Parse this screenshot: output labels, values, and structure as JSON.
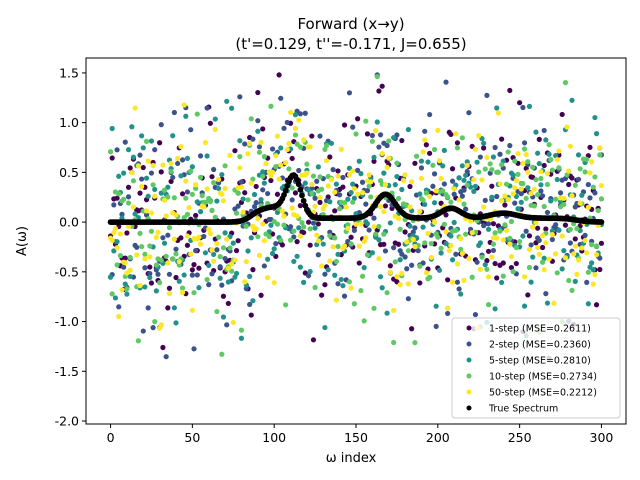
{
  "chart_data": {
    "type": "scatter",
    "title": "Forward (x→y)",
    "subtitle": "(t'=0.129, t''=-0.171, J=0.655)",
    "xlabel": "ω index",
    "ylabel": "A(ω)",
    "xlim": [
      -15,
      315
    ],
    "ylim": [
      -2.03,
      1.65
    ],
    "xticks": [
      0,
      50,
      100,
      150,
      200,
      250,
      300
    ],
    "yticks": [
      -2.0,
      -1.5,
      -1.0,
      -0.5,
      0.0,
      0.5,
      1.0,
      1.5
    ],
    "grid": false,
    "legend_position": "lower-right",
    "num_points": 301,
    "series": [
      {
        "name": "1-step (MSE=0.2611)",
        "color": "#440154",
        "seed": 11
      },
      {
        "name": "2-step (MSE=0.2360)",
        "color": "#3b528b",
        "seed": 23
      },
      {
        "name": "5-step (MSE=0.2810)",
        "color": "#21918c",
        "seed": 37
      },
      {
        "name": "10-step (MSE=0.2734)",
        "color": "#5ec962",
        "seed": 53
      },
      {
        "name": "50-step (MSE=0.2212)",
        "color": "#fde725",
        "seed": 71
      }
    ],
    "true_spectrum": {
      "name": "True Spectrum",
      "color": "#000000",
      "peaks": [
        {
          "center": 112,
          "width": 4.5,
          "height": 0.42
        },
        {
          "center": 100,
          "width": 6,
          "height": 0.1
        },
        {
          "center": 90,
          "width": 5,
          "height": 0.05
        },
        {
          "center": 168,
          "width": 6,
          "height": 0.24
        },
        {
          "center": 208,
          "width": 6,
          "height": 0.1
        },
        {
          "center": 240,
          "width": 8,
          "height": 0.05
        }
      ],
      "plateaus": [
        {
          "start": 85,
          "end": 285,
          "level": 0.04
        }
      ]
    }
  }
}
